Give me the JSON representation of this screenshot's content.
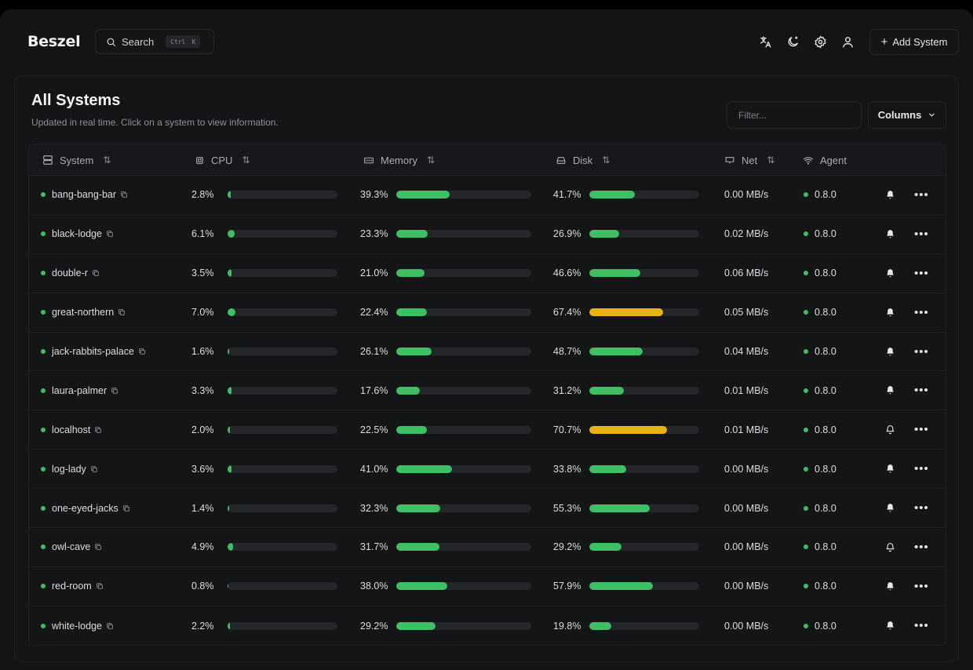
{
  "app": {
    "logo": "Beszel"
  },
  "header": {
    "search_label": "Search",
    "search_kbd": [
      "Ctrl",
      "K"
    ],
    "icons": [
      "language-icon",
      "theme-moon-icon",
      "settings-gear-icon",
      "user-icon"
    ],
    "add_system_label": "Add System"
  },
  "page": {
    "title": "All Systems",
    "subtitle": "Updated in real time. Click on a system to view information.",
    "filter_placeholder": "Filter...",
    "columns_label": "Columns"
  },
  "table": {
    "headers": {
      "system": "System",
      "cpu": "CPU",
      "memory": "Memory",
      "disk": "Disk",
      "net": "Net",
      "agent": "Agent"
    },
    "rows": [
      {
        "name": "bang-bang-bar",
        "cpu": "2.8%",
        "cpu_v": 2.8,
        "mem": "39.3%",
        "mem_v": 39.3,
        "disk": "41.7%",
        "disk_v": 41.7,
        "net": "0.00 MB/s",
        "agent": "0.8.0",
        "bell": "filled"
      },
      {
        "name": "black-lodge",
        "cpu": "6.1%",
        "cpu_v": 6.1,
        "mem": "23.3%",
        "mem_v": 23.3,
        "disk": "26.9%",
        "disk_v": 26.9,
        "net": "0.02 MB/s",
        "agent": "0.8.0",
        "bell": "filled"
      },
      {
        "name": "double-r",
        "cpu": "3.5%",
        "cpu_v": 3.5,
        "mem": "21.0%",
        "mem_v": 21.0,
        "disk": "46.6%",
        "disk_v": 46.6,
        "net": "0.06 MB/s",
        "agent": "0.8.0",
        "bell": "filled"
      },
      {
        "name": "great-northern",
        "cpu": "7.0%",
        "cpu_v": 7.0,
        "mem": "22.4%",
        "mem_v": 22.4,
        "disk": "67.4%",
        "disk_v": 67.4,
        "net": "0.05 MB/s",
        "agent": "0.8.0",
        "bell": "filled"
      },
      {
        "name": "jack-rabbits-palace",
        "cpu": "1.6%",
        "cpu_v": 1.6,
        "mem": "26.1%",
        "mem_v": 26.1,
        "disk": "48.7%",
        "disk_v": 48.7,
        "net": "0.04 MB/s",
        "agent": "0.8.0",
        "bell": "filled"
      },
      {
        "name": "laura-palmer",
        "cpu": "3.3%",
        "cpu_v": 3.3,
        "mem": "17.6%",
        "mem_v": 17.6,
        "disk": "31.2%",
        "disk_v": 31.2,
        "net": "0.01 MB/s",
        "agent": "0.8.0",
        "bell": "filled"
      },
      {
        "name": "localhost",
        "cpu": "2.0%",
        "cpu_v": 2.0,
        "mem": "22.5%",
        "mem_v": 22.5,
        "disk": "70.7%",
        "disk_v": 70.7,
        "net": "0.01 MB/s",
        "agent": "0.8.0",
        "bell": "outline"
      },
      {
        "name": "log-lady",
        "cpu": "3.6%",
        "cpu_v": 3.6,
        "mem": "41.0%",
        "mem_v": 41.0,
        "disk": "33.8%",
        "disk_v": 33.8,
        "net": "0.00 MB/s",
        "agent": "0.8.0",
        "bell": "filled"
      },
      {
        "name": "one-eyed-jacks",
        "cpu": "1.4%",
        "cpu_v": 1.4,
        "mem": "32.3%",
        "mem_v": 32.3,
        "disk": "55.3%",
        "disk_v": 55.3,
        "net": "0.00 MB/s",
        "agent": "0.8.0",
        "bell": "filled"
      },
      {
        "name": "owl-cave",
        "cpu": "4.9%",
        "cpu_v": 4.9,
        "mem": "31.7%",
        "mem_v": 31.7,
        "disk": "29.2%",
        "disk_v": 29.2,
        "net": "0.00 MB/s",
        "agent": "0.8.0",
        "bell": "outline"
      },
      {
        "name": "red-room",
        "cpu": "0.8%",
        "cpu_v": 0.8,
        "mem": "38.0%",
        "mem_v": 38.0,
        "disk": "57.9%",
        "disk_v": 57.9,
        "net": "0.00 MB/s",
        "agent": "0.8.0",
        "bell": "filled"
      },
      {
        "name": "white-lodge",
        "cpu": "2.2%",
        "cpu_v": 2.2,
        "mem": "29.2%",
        "mem_v": 29.2,
        "disk": "19.8%",
        "disk_v": 19.8,
        "net": "0.00 MB/s",
        "agent": "0.8.0",
        "bell": "filled"
      }
    ]
  },
  "colors": {
    "ok": "#3fbf63",
    "warn": "#e7b214",
    "track": "#24262a"
  }
}
